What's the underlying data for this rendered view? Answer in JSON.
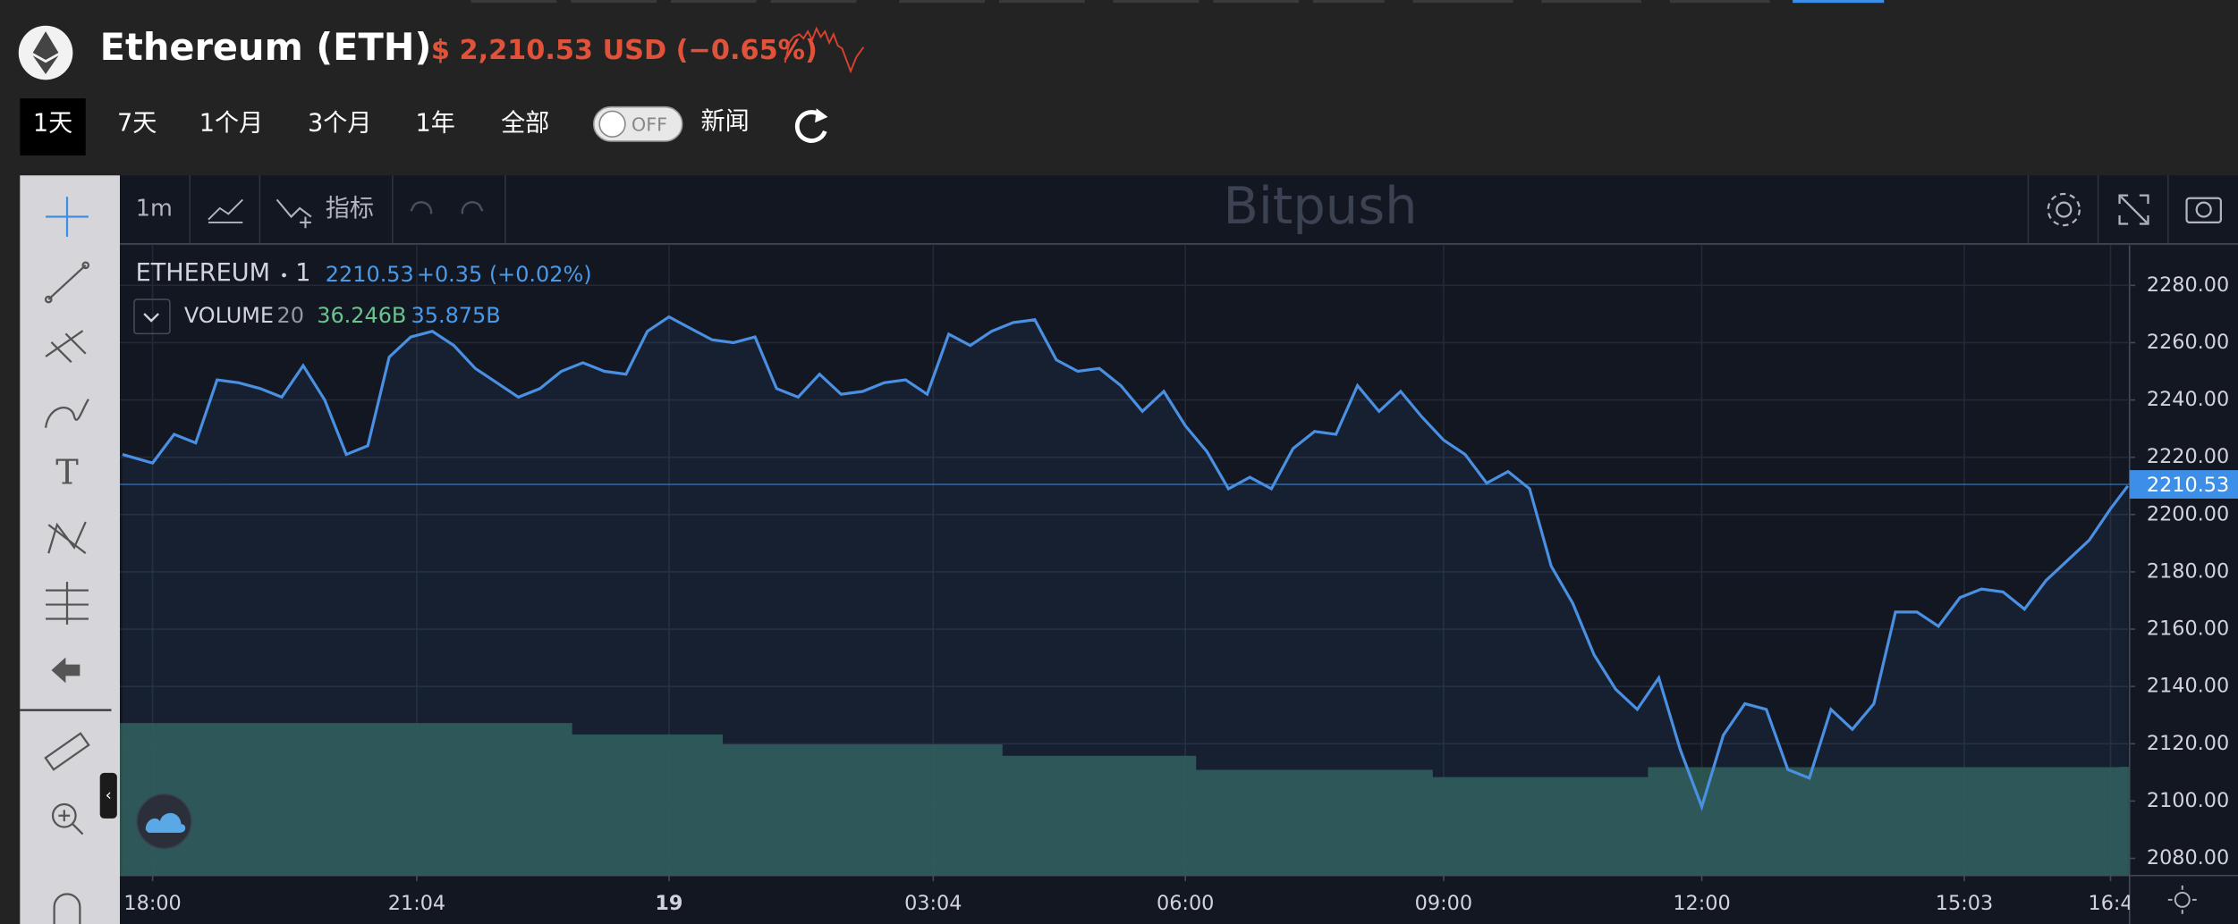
{
  "header": {
    "title": "Ethereum (ETH)",
    "price": "$ 2,210.53 USD (−0.65%)"
  },
  "range_tabs": [
    "1天",
    "7天",
    "1个月",
    "3个月",
    "1年",
    "全部"
  ],
  "toggle": "OFF",
  "news": "新闻",
  "toolbar": {
    "interval": "1m",
    "indicators": "指标",
    "watermark": "Bitpush"
  },
  "legend": {
    "interval": "1",
    "change": "+0.35 (+0.02%)",
    "volume_length": "20",
    "volume_value": "36.246B",
    "volume_ma": "35.875B"
  },
  "chart_data": {
    "type": "line",
    "x": [
      -0.35,
      0,
      0.25,
      0.5,
      0.75,
      1,
      1.25,
      1.5,
      1.75,
      2,
      2.25,
      2.5,
      2.75,
      3,
      3.25,
      3.5,
      3.75,
      4,
      4.25,
      4.5,
      4.75,
      5,
      5.25,
      5.5,
      5.75,
      6,
      6.25,
      6.5,
      6.75,
      7,
      7.25,
      7.5,
      7.75,
      8,
      8.25,
      8.5,
      8.75,
      9,
      9.25,
      9.5,
      9.75,
      10,
      10.25,
      10.5,
      10.75,
      11,
      11.25,
      11.5,
      11.75,
      12,
      12.25,
      12.5,
      12.75,
      13,
      13.25,
      13.5,
      13.75,
      14,
      14.25,
      14.5,
      14.75,
      15,
      15.25,
      15.5,
      15.75,
      16,
      16.25,
      16.5,
      16.75,
      17,
      17.25,
      17.5,
      17.75,
      18,
      18.25,
      18.5,
      18.75,
      19,
      19.25,
      19.5,
      19.75,
      20,
      20.25,
      20.5,
      20.75,
      21,
      21.25,
      21.5,
      21.75,
      22,
      22.25,
      22.5,
      22.75,
      22.95
    ],
    "series": [
      {
        "name": "ETHEREUM",
        "color": "#4a90e2",
        "values": [
          2221,
          2218,
          2228,
          2225,
          2247,
          2246,
          2244,
          2241,
          2252,
          2240,
          2221,
          2224,
          2255,
          2262,
          2264,
          2259,
          2251,
          2246,
          2241,
          2244,
          2250,
          2253,
          2250,
          2249,
          2264,
          2269,
          2265,
          2261,
          2260,
          2262,
          2244,
          2241,
          2249,
          2242,
          2243,
          2246,
          2247,
          2242,
          2263,
          2259,
          2264,
          2267,
          2268,
          2254,
          2250,
          2251,
          2245,
          2236,
          2243,
          2231,
          2222,
          2209,
          2213,
          2209,
          2223,
          2229,
          2228,
          2245,
          2236,
          2243,
          2234,
          2226,
          2221,
          2211,
          2215,
          2209,
          2182,
          2169,
          2151,
          2139,
          2132,
          2143,
          2118,
          2098,
          2123,
          2134,
          2132,
          2111,
          2108,
          2132,
          2125,
          2134,
          2166,
          2166,
          2161,
          2171,
          2174,
          2173,
          2167,
          2177,
          2184,
          2191,
          2202,
          2210
        ]
      },
      {
        "name": "VOLUME",
        "color": "#2f5a52",
        "axis": "y2",
        "values": [
          50.8,
          50.8,
          50.8,
          50.8,
          50.8,
          50.8,
          50.8,
          50.8,
          50.8,
          50.8,
          50.8,
          50.8,
          50.8,
          50.8,
          50.8,
          50.8,
          50.8,
          50.8,
          50.8,
          50.8,
          50.8,
          47.0,
          47.0,
          47.0,
          47.0,
          47.0,
          47.0,
          47.0,
          43.7,
          43.7,
          43.7,
          43.7,
          43.7,
          43.7,
          43.7,
          43.7,
          43.7,
          43.7,
          43.7,
          43.7,
          43.7,
          39.9,
          39.9,
          39.9,
          39.9,
          39.9,
          39.9,
          39.9,
          39.9,
          39.9,
          35.2,
          35.2,
          35.2,
          35.2,
          35.2,
          35.2,
          35.2,
          35.2,
          35.2,
          35.2,
          35.2,
          32.8,
          32.8,
          32.8,
          32.8,
          32.8,
          32.8,
          32.8,
          32.8,
          32.8,
          32.8,
          36.1,
          36.1,
          36.1,
          36.1,
          36.1,
          36.1,
          36.1,
          36.1,
          36.1,
          36.1,
          36.1,
          36.1,
          36.1,
          36.1,
          36.1,
          36.1,
          36.1,
          36.1,
          36.1,
          36.1,
          36.1,
          36.1,
          36.2
        ]
      }
    ],
    "last_value": 2210.53,
    "xlim": [
      -0.38,
      22.97
    ],
    "ylim": [
      2074,
      2294
    ],
    "y2lim": [
      0,
      210
    ],
    "xticks": [
      {
        "value": 0,
        "label": "18:00"
      },
      {
        "value": 3.07,
        "label": "21:04"
      },
      {
        "value": 6,
        "label": "19"
      },
      {
        "value": 9.07,
        "label": "03:04"
      },
      {
        "value": 12,
        "label": "06:00"
      },
      {
        "value": 15,
        "label": "09:00"
      },
      {
        "value": 18,
        "label": "12:00"
      },
      {
        "value": 21.05,
        "label": "15:03"
      },
      {
        "value": 22.75,
        "label": "16:4"
      }
    ],
    "yticks": [
      {
        "value": 2080,
        "label": "2080.00"
      },
      {
        "value": 2100,
        "label": "2100.00"
      },
      {
        "value": 2120,
        "label": "2120.00"
      },
      {
        "value": 2140,
        "label": "2140.00"
      },
      {
        "value": 2160,
        "label": "2160.00"
      },
      {
        "value": 2180,
        "label": "2180.00"
      },
      {
        "value": 2200,
        "label": "2200.00"
      },
      {
        "value": 2220,
        "label": "2220.00"
      },
      {
        "value": 2240,
        "label": "2240.00"
      },
      {
        "value": 2260,
        "label": "2260.00"
      },
      {
        "value": 2280,
        "label": "2280.00"
      }
    ],
    "grid": true
  }
}
